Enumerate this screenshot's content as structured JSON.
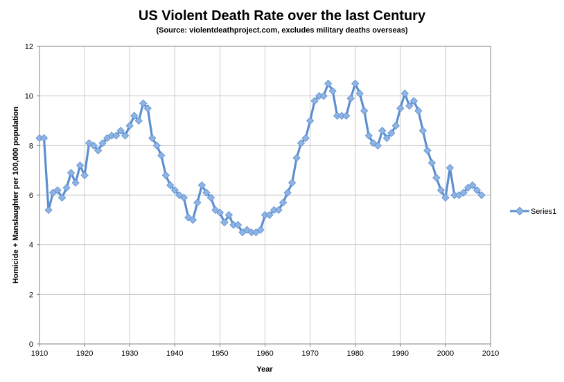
{
  "chart_data": {
    "type": "line",
    "title": "US Violent Death Rate over the last Century",
    "subtitle": "(Source: violentdeathproject.com, excludes military deaths overseas)",
    "xlabel": "Year",
    "ylabel": "Homicide + Manslaughter per 100,000 population",
    "xlim": [
      1910,
      2010
    ],
    "ylim": [
      0,
      12
    ],
    "x_ticks": [
      1910,
      1920,
      1930,
      1940,
      1950,
      1960,
      1970,
      1980,
      1990,
      2000,
      2010
    ],
    "y_ticks": [
      0,
      2,
      4,
      6,
      8,
      10,
      12
    ],
    "grid": true,
    "legend_position": "right",
    "line_color": "#5b8fd0",
    "marker_color": "#8fb4e3",
    "series": [
      {
        "name": "Series1",
        "x": [
          1910,
          1911,
          1912,
          1913,
          1914,
          1915,
          1916,
          1917,
          1918,
          1919,
          1920,
          1921,
          1922,
          1923,
          1924,
          1925,
          1926,
          1927,
          1928,
          1929,
          1930,
          1931,
          1932,
          1933,
          1934,
          1935,
          1936,
          1937,
          1938,
          1939,
          1940,
          1941,
          1942,
          1943,
          1944,
          1945,
          1946,
          1947,
          1948,
          1949,
          1950,
          1951,
          1952,
          1953,
          1954,
          1955,
          1956,
          1957,
          1958,
          1959,
          1960,
          1961,
          1962,
          1963,
          1964,
          1965,
          1966,
          1967,
          1968,
          1969,
          1970,
          1971,
          1972,
          1973,
          1974,
          1975,
          1976,
          1977,
          1978,
          1979,
          1980,
          1981,
          1982,
          1983,
          1984,
          1985,
          1986,
          1987,
          1988,
          1989,
          1990,
          1991,
          1992,
          1993,
          1994,
          1995,
          1996,
          1997,
          1998,
          1999,
          2000,
          2001,
          2002,
          2003,
          2004,
          2005,
          2006,
          2007,
          2008
        ],
        "values": [
          8.3,
          8.3,
          5.4,
          6.1,
          6.2,
          5.9,
          6.3,
          6.9,
          6.5,
          7.2,
          6.8,
          8.1,
          8.0,
          7.8,
          8.1,
          8.3,
          8.4,
          8.4,
          8.6,
          8.4,
          8.8,
          9.2,
          9.0,
          9.7,
          9.5,
          8.3,
          8.0,
          7.6,
          6.8,
          6.4,
          6.2,
          6.0,
          5.9,
          5.1,
          5.0,
          5.7,
          6.4,
          6.1,
          5.9,
          5.4,
          5.3,
          4.9,
          5.2,
          4.8,
          4.8,
          4.5,
          4.6,
          4.5,
          4.5,
          4.6,
          5.2,
          5.2,
          5.4,
          5.4,
          5.7,
          6.1,
          6.5,
          7.5,
          8.1,
          8.3,
          9.0,
          9.8,
          10.0,
          10.0,
          10.5,
          10.2,
          9.2,
          9.2,
          9.2,
          9.9,
          10.5,
          10.1,
          9.4,
          8.4,
          8.1,
          8.0,
          8.6,
          8.3,
          8.5,
          8.8,
          9.5,
          10.1,
          9.6,
          9.8,
          9.4,
          8.6,
          7.8,
          7.3,
          6.7,
          6.2,
          5.9,
          7.1,
          6.0,
          6.0,
          6.1,
          6.3,
          6.4,
          6.2,
          6.0
        ]
      }
    ]
  }
}
